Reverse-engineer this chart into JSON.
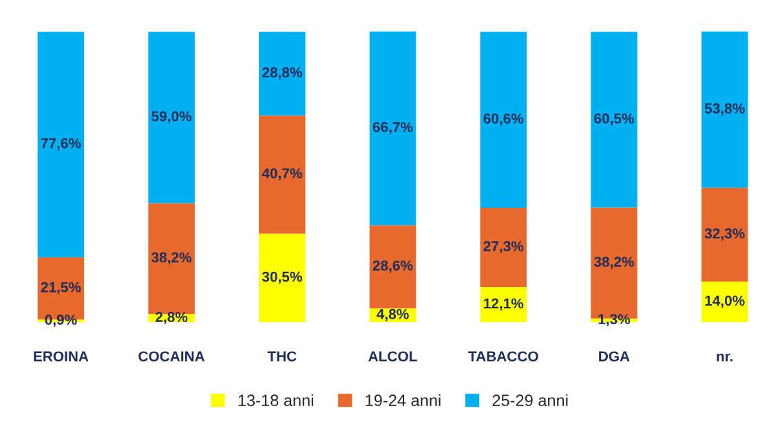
{
  "chart_data": {
    "type": "bar",
    "stacked": true,
    "categories": [
      "EROINA",
      "COCAINA",
      "THC",
      "ALCOL",
      "TABACCO",
      "DGA",
      "nr."
    ],
    "series": [
      {
        "name": "13-18 anni",
        "color": "#ffff00",
        "values": [
          0.9,
          2.8,
          30.5,
          4.8,
          12.1,
          1.3,
          14.0
        ],
        "value_labels": [
          "0,9%",
          "2,8%",
          "30,5%",
          "4,8%",
          "12,1%",
          "1,3%",
          "14,0%"
        ]
      },
      {
        "name": "19-24 anni",
        "color": "#e8692e",
        "values": [
          21.5,
          38.2,
          40.7,
          28.6,
          27.3,
          38.2,
          32.3
        ],
        "value_labels": [
          "21,5%",
          "38,2%",
          "40,7%",
          "28,6%",
          "27,3%",
          "38,2%",
          "32,3%"
        ]
      },
      {
        "name": "25-29 anni",
        "color": "#00b0f0",
        "values": [
          77.6,
          59.0,
          28.8,
          66.7,
          60.6,
          60.5,
          53.8
        ],
        "value_labels": [
          "77,6%",
          "59,0%",
          "28,8%",
          "66,7%",
          "60,6%",
          "60,5%",
          "53,8%"
        ]
      }
    ],
    "legend": "bottom",
    "tick_labels": "x",
    "grid": false
  }
}
